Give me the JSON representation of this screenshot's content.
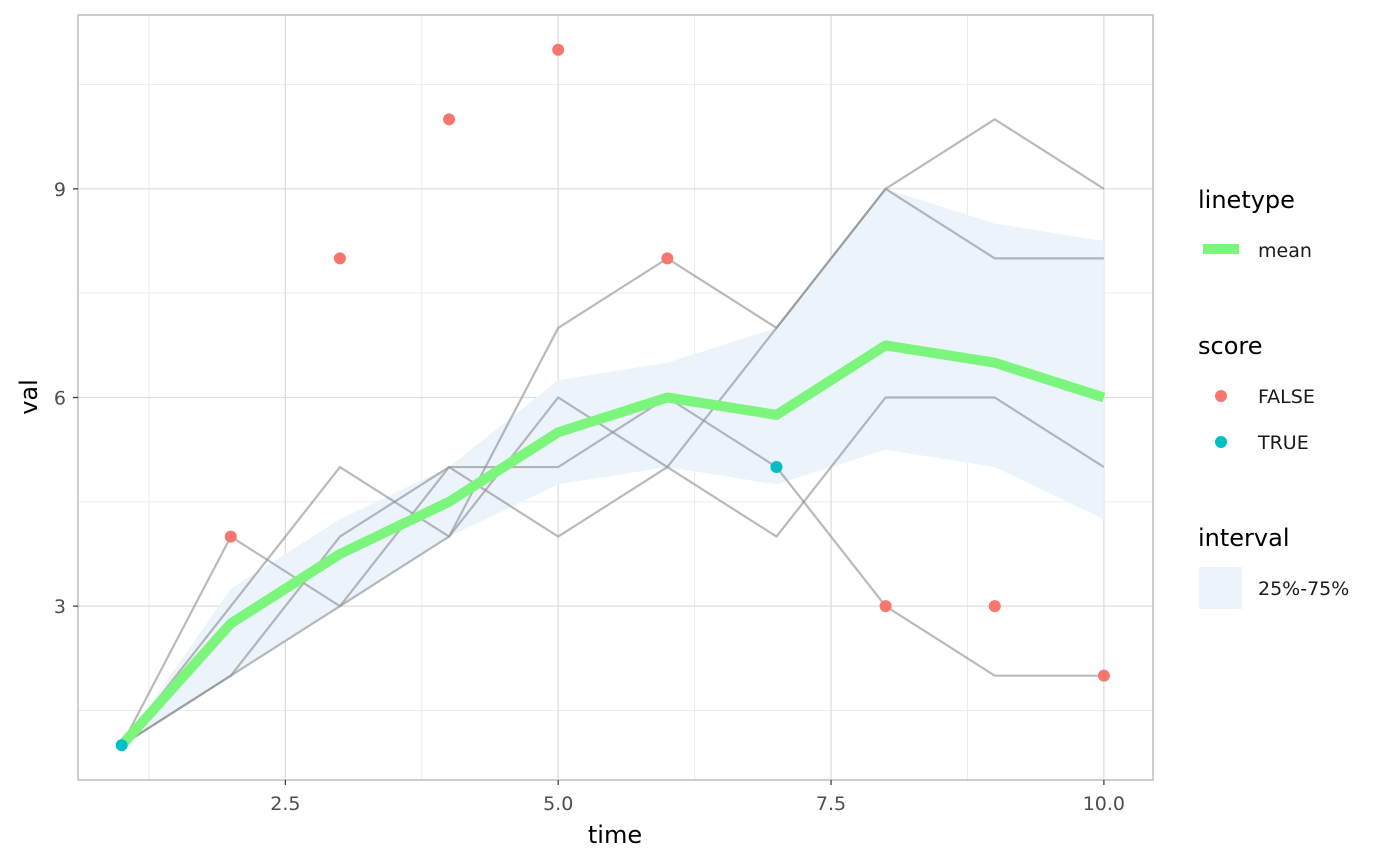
{
  "chart_data": {
    "type": "line",
    "xlabel": "time",
    "ylabel": "val",
    "xlim": [
      0.6,
      10.45
    ],
    "ylim": [
      0.5,
      11.5
    ],
    "x_ticks": [
      2.5,
      5.0,
      7.5,
      10.0
    ],
    "x_tick_labels": [
      "2.5",
      "5.0",
      "7.5",
      "10.0"
    ],
    "y_ticks": [
      3,
      6,
      9
    ],
    "y_tick_labels": [
      "3",
      "6",
      "9"
    ],
    "grid": true,
    "x": [
      1,
      2,
      3,
      4,
      5,
      6,
      7,
      8,
      9,
      10
    ],
    "individual_lines": [
      [
        1,
        4,
        3,
        5,
        4,
        5,
        7,
        9,
        10,
        9
      ],
      [
        1,
        3,
        5,
        4,
        7,
        8,
        7,
        9,
        8,
        8
      ],
      [
        1,
        2,
        3,
        4,
        6,
        5,
        4,
        6,
        6,
        5
      ],
      [
        1,
        2,
        4,
        5,
        5,
        6,
        5,
        3,
        2,
        2
      ]
    ],
    "mean": [
      1,
      2.75,
      3.75,
      4.5,
      5.5,
      6.0,
      5.75,
      6.75,
      6.5,
      6.0
    ],
    "interval": {
      "lower": [
        1,
        2,
        3,
        4,
        4.75,
        5,
        4.75,
        5.25,
        5.0,
        4.25
      ],
      "upper": [
        1,
        3.25,
        4.25,
        5,
        6.25,
        6.5,
        7.0,
        9.0,
        8.5,
        8.25
      ]
    },
    "points": [
      {
        "x": 1,
        "y": 1,
        "score": "TRUE"
      },
      {
        "x": 2,
        "y": 4,
        "score": "FALSE"
      },
      {
        "x": 3,
        "y": 8,
        "score": "FALSE"
      },
      {
        "x": 4,
        "y": 10,
        "score": "FALSE"
      },
      {
        "x": 5,
        "y": 11,
        "score": "FALSE"
      },
      {
        "x": 6,
        "y": 8,
        "score": "FALSE"
      },
      {
        "x": 7,
        "y": 5,
        "score": "TRUE"
      },
      {
        "x": 8,
        "y": 3,
        "score": "FALSE"
      },
      {
        "x": 9,
        "y": 3,
        "score": "FALSE"
      },
      {
        "x": 10,
        "y": 2,
        "score": "FALSE"
      }
    ],
    "colors": {
      "mean": "#7CF57C",
      "false": "#F8766D",
      "true": "#00BFC4",
      "interval_fill": "#EBF3FB",
      "individual_line": "#8c8c8c",
      "grid": "#dedede",
      "panel_border": "#b3b3b3"
    },
    "legend": {
      "placement": "right",
      "linetype_title": "linetype",
      "linetype_label": "mean",
      "score_title": "score",
      "score_labels": [
        "FALSE",
        "TRUE"
      ],
      "interval_title": "interval",
      "interval_label": "25%-75%"
    }
  }
}
